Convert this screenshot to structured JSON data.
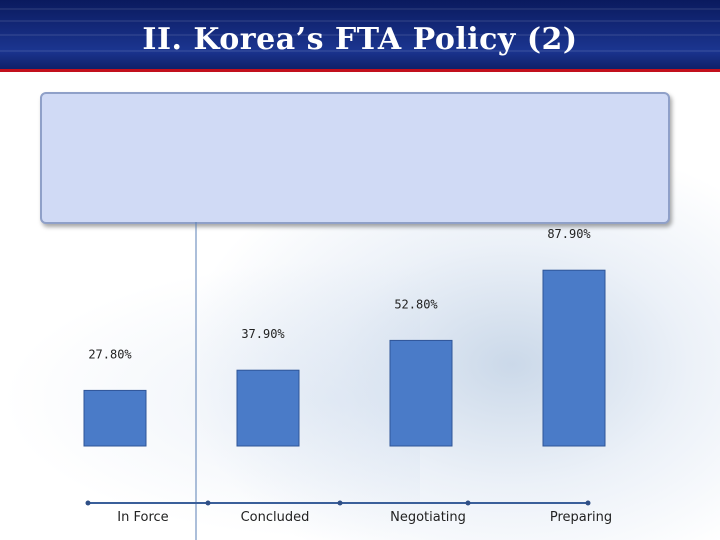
{
  "header": {
    "title": "II. Korea’s FTA Policy (2)"
  },
  "colors": {
    "bar": "#4a7bc8",
    "header": "#14297a",
    "accent": "#c2101d",
    "panel": "#d0daf5"
  },
  "chart_data": {
    "type": "bar",
    "categories": [
      "In Force",
      "Concluded",
      "Negotiating",
      "Preparing"
    ],
    "values": [
      27.8,
      37.9,
      52.8,
      87.9
    ],
    "labels": [
      "27.80%",
      "37.90%",
      "52.80%",
      "87.90%"
    ],
    "title": "",
    "xlabel": "",
    "ylabel": "",
    "grid": false,
    "legend": "none"
  }
}
